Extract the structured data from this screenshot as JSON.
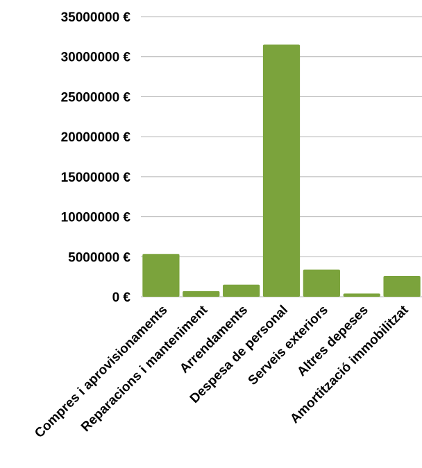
{
  "colors": {
    "bar": "#7ba33c",
    "grid": "#b3b3b3",
    "text": "#000000"
  },
  "chart_data": {
    "type": "bar",
    "categories": [
      "Compres i aprovisionaments",
      "Reparacions i manteniment",
      "Arrendaments",
      "Despesa de personal",
      "Serveis exteriors",
      "Altres depeses",
      "Amortització immobilitzat"
    ],
    "values": [
      5350000,
      700000,
      1500000,
      31500000,
      3400000,
      400000,
      2600000
    ],
    "ylim": [
      0,
      35000000
    ],
    "yticks": [
      "0 €",
      "5000000 €",
      "10000000 €",
      "15000000 €",
      "20000000 €",
      "25000000 €",
      "30000000 €",
      "35000000 €"
    ],
    "grid": true,
    "legend": "none"
  }
}
